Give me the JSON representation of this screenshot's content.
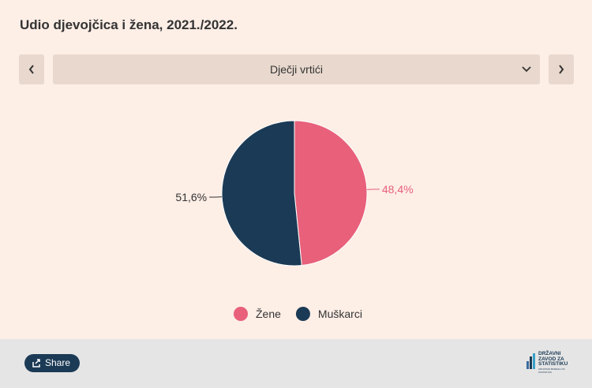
{
  "header": {
    "title": "Udio djevojčica i žena, 2021./2022."
  },
  "controls": {
    "selected": "Dječji vrtići"
  },
  "chart_data": {
    "type": "pie",
    "categories": [
      "Žene",
      "Muškarci"
    ],
    "values": [
      48.4,
      51.6
    ],
    "value_labels": [
      "48,4%",
      "51,6%"
    ],
    "colors": [
      "#e8607a",
      "#1b3a55"
    ]
  },
  "footer": {
    "share": "Share",
    "logo_lines": [
      "DRŽAVNI",
      "ZAVOD ZA",
      "STATISTIKU"
    ],
    "logo_sub": "CROATIAN BUREAU OF STATISTICS"
  }
}
